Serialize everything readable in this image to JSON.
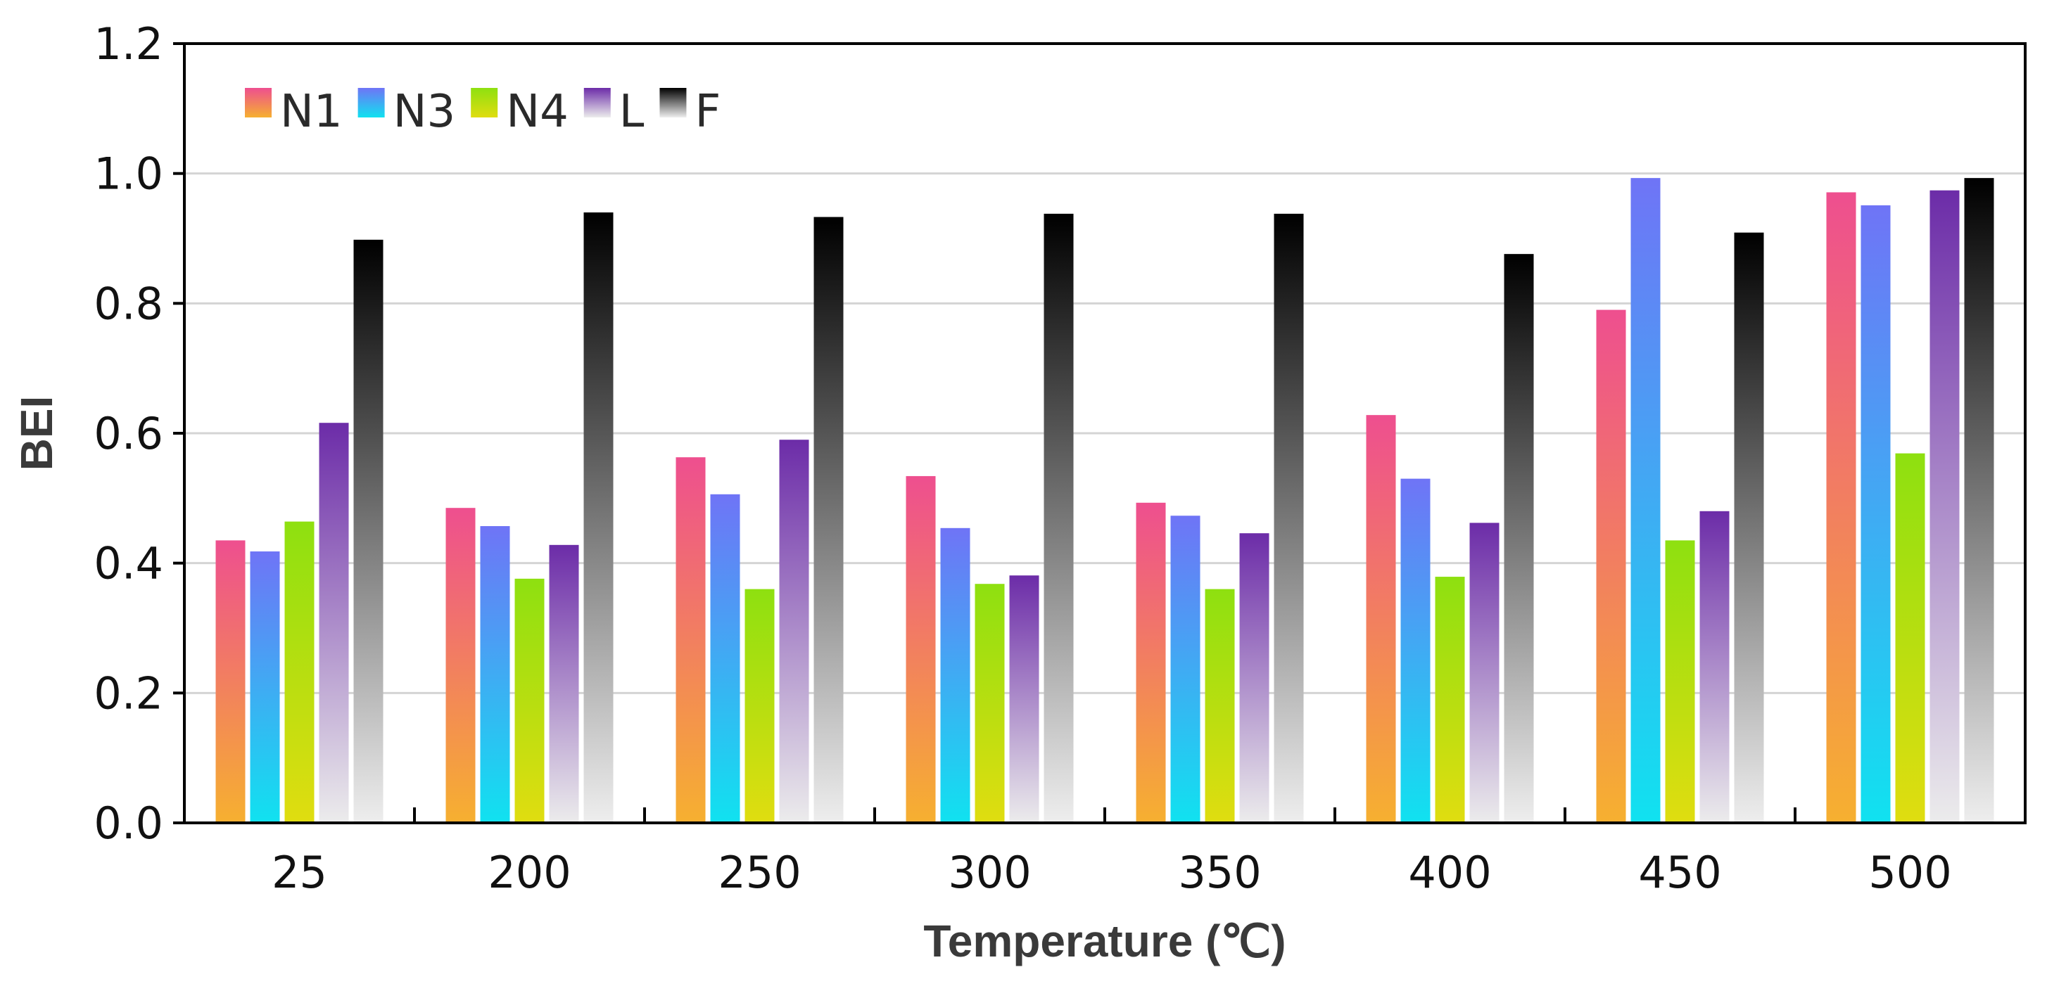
{
  "chart_data": {
    "type": "bar",
    "title": "",
    "xlabel": "Temperature (℃)",
    "ylabel": "BEI",
    "ylim": [
      0,
      1.2
    ],
    "yticks": [
      "0.0",
      "0.2",
      "0.4",
      "0.6",
      "0.8",
      "1.0",
      "1.2"
    ],
    "grid": true,
    "legend_position": "top-left",
    "categories": [
      "25",
      "200",
      "250",
      "300",
      "350",
      "400",
      "450",
      "500"
    ],
    "series": [
      {
        "name": "N1",
        "gradient_top": "#ee4f8f",
        "gradient_bottom": "#f6b030",
        "values": [
          0.435,
          0.485,
          0.563,
          0.534,
          0.493,
          0.628,
          0.79,
          0.971
        ]
      },
      {
        "name": "N3",
        "gradient_top": "#6f74f6",
        "gradient_bottom": "#10e2f0",
        "values": [
          0.418,
          0.457,
          0.506,
          0.454,
          0.473,
          0.53,
          0.993,
          0.951
        ]
      },
      {
        "name": "N4",
        "gradient_top": "#8ee010",
        "gradient_bottom": "#e0dd10",
        "values": [
          0.464,
          0.376,
          0.36,
          0.368,
          0.36,
          0.379,
          0.435,
          0.569
        ]
      },
      {
        "name": "L",
        "gradient_top": "#6c2ca8",
        "gradient_bottom": "#ececec",
        "values": [
          0.616,
          0.428,
          0.59,
          0.381,
          0.446,
          0.462,
          0.48,
          0.974
        ]
      },
      {
        "name": "F",
        "gradient_top": "#000000",
        "gradient_bottom": "#eeeeee",
        "values": [
          0.898,
          0.94,
          0.933,
          0.938,
          0.938,
          0.876,
          0.909,
          0.993
        ]
      }
    ]
  }
}
